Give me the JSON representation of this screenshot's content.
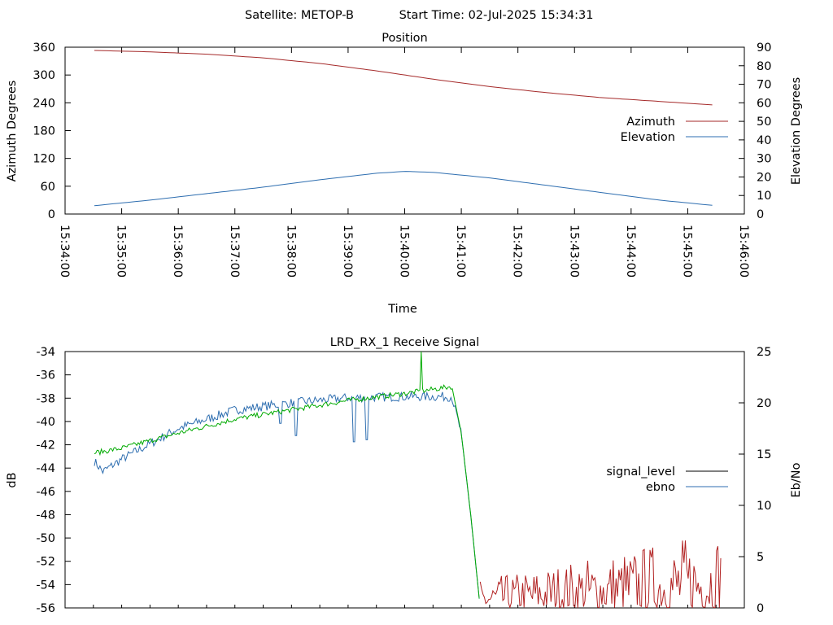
{
  "header": {
    "satellite_label": "Satellite: METOP-B",
    "start_label": "Start Time: 02-Jul-2025 15:34:31"
  },
  "colors": {
    "azimuth": "#a52a2a",
    "elevation": "#2e6eb0",
    "signal_level": "#00aa00",
    "ebno_blue": "#2e6eb0",
    "ebno_red": "#b22222",
    "legend_signal_level": "#000000"
  },
  "chart_data": [
    {
      "type": "line",
      "title": "Position",
      "xlabel": "Time",
      "ylabel": "Azimuth Degrees",
      "y2label": "Elevation Degrees",
      "xlim": [
        "15:34:00",
        "15:46:00"
      ],
      "ylim": [
        0,
        360
      ],
      "y2lim": [
        0,
        90
      ],
      "x_ticks": [
        "15:34:00",
        "15:35:00",
        "15:36:00",
        "15:37:00",
        "15:38:00",
        "15:39:00",
        "15:40:00",
        "15:41:00",
        "15:42:00",
        "15:43:00",
        "15:44:00",
        "15:45:00",
        "15:46:00"
      ],
      "y_ticks": [
        "0",
        "60",
        "120",
        "180",
        "240",
        "300",
        "360"
      ],
      "y2_ticks": [
        "0",
        "10",
        "20",
        "30",
        "40",
        "50",
        "60",
        "70",
        "80",
        "90"
      ],
      "legend_position": "right",
      "series": [
        {
          "name": "Azimuth",
          "axis": "left",
          "color": "#a52a2a",
          "x": [
            "15:34:31",
            "15:35:30",
            "15:36:30",
            "15:37:30",
            "15:38:30",
            "15:39:30",
            "15:40:00",
            "15:40:30",
            "15:41:30",
            "15:42:30",
            "15:43:30",
            "15:44:30",
            "15:45:30"
          ],
          "values": [
            353,
            350,
            345,
            337,
            325,
            309,
            300,
            291,
            275,
            262,
            251,
            243,
            235
          ]
        },
        {
          "name": "Elevation",
          "axis": "right",
          "color": "#2e6eb0",
          "x": [
            "15:34:31",
            "15:35:30",
            "15:36:30",
            "15:37:30",
            "15:38:30",
            "15:39:30",
            "15:40:00",
            "15:40:30",
            "15:41:30",
            "15:42:30",
            "15:43:30",
            "15:44:30",
            "15:45:30"
          ],
          "values": [
            4.5,
            7.5,
            11,
            14.5,
            18.5,
            22,
            23,
            22.5,
            19.5,
            15.5,
            11.5,
            7.5,
            4.5
          ]
        }
      ]
    },
    {
      "type": "line",
      "title": "LRD_RX_1 Receive Signal",
      "ylabel": "dB",
      "y2label": "Eb/No",
      "xlim": [
        "15:34:00",
        "15:46:00"
      ],
      "ylim": [
        -56,
        -34
      ],
      "y2lim": [
        0,
        25
      ],
      "y_ticks": [
        "-34",
        "-36",
        "-38",
        "-40",
        "-42",
        "-44",
        "-46",
        "-48",
        "-50",
        "-52",
        "-54",
        "-56"
      ],
      "y2_ticks": [
        "0",
        "5",
        "10",
        "15",
        "20",
        "25"
      ],
      "legend_position": "right",
      "series": [
        {
          "name": "signal_level",
          "axis": "left",
          "color": "#00aa00",
          "x": [
            "15:34:31",
            "15:35:00",
            "15:36:00",
            "15:37:00",
            "15:38:00",
            "15:39:00",
            "15:40:00",
            "15:40:50",
            "15:41:00",
            "15:41:10",
            "15:41:20"
          ],
          "values": [
            -42.7,
            -42.3,
            -41.0,
            -39.8,
            -39.0,
            -38.2,
            -37.6,
            -37.0,
            -41.0,
            -48.0,
            -56.0
          ],
          "spike": {
            "x": "15:40:17",
            "value": -34.0
          }
        },
        {
          "name": "ebno",
          "axis": "right",
          "color": "#2e6eb0",
          "x": [
            "15:34:31",
            "15:34:40",
            "15:35:00",
            "15:36:00",
            "15:37:00",
            "15:38:00",
            "15:39:00",
            "15:40:00",
            "15:40:50",
            "15:41:00",
            "15:41:10",
            "15:41:20"
          ],
          "values": [
            14.3,
            13.3,
            14.5,
            17.5,
            19.3,
            20.0,
            20.5,
            20.6,
            20.6,
            17.0,
            9.0,
            0.0
          ],
          "dips": [
            {
              "x": "15:37:48",
              "value": 18.0
            },
            {
              "x": "15:38:05",
              "value": 16.8
            },
            {
              "x": "15:39:06",
              "value": 16.2
            },
            {
              "x": "15:39:20",
              "value": 16.4
            }
          ],
          "noise_after_dropout": {
            "x_start": "15:41:20",
            "x_end": "15:45:35",
            "min": 0.0,
            "max": 7.8,
            "color": "#b22222"
          }
        }
      ]
    }
  ]
}
